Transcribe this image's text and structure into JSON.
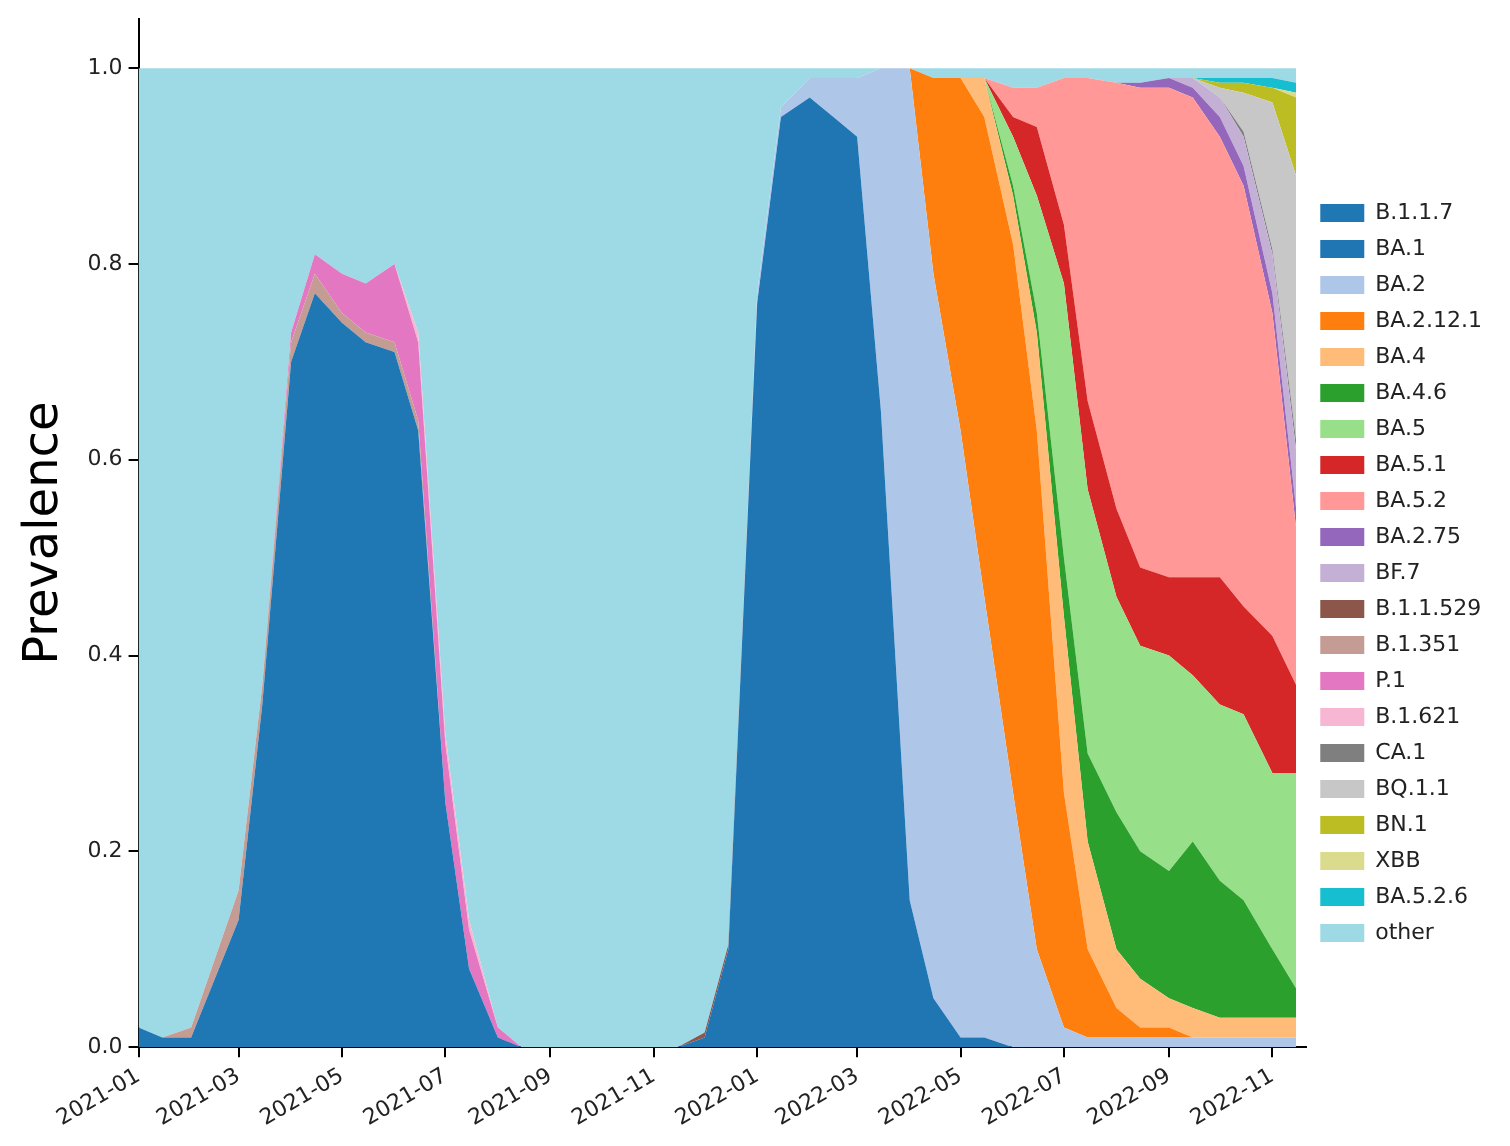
{
  "chart_data": {
    "type": "area",
    "stacked": true,
    "ylabel": "Prevalence",
    "x": [
      "2021-01-01",
      "2021-01-15",
      "2021-02-01",
      "2021-02-15",
      "2021-03-01",
      "2021-03-15",
      "2021-04-01",
      "2021-04-15",
      "2021-05-01",
      "2021-05-15",
      "2021-06-01",
      "2021-06-15",
      "2021-07-01",
      "2021-07-15",
      "2021-08-01",
      "2021-08-15",
      "2021-09-01",
      "2021-09-15",
      "2021-10-01",
      "2021-10-15",
      "2021-11-01",
      "2021-11-15",
      "2021-12-01",
      "2021-12-15",
      "2022-01-01",
      "2022-01-15",
      "2022-02-01",
      "2022-02-15",
      "2022-03-01",
      "2022-03-15",
      "2022-04-01",
      "2022-04-15",
      "2022-05-01",
      "2022-05-15",
      "2022-06-01",
      "2022-06-15",
      "2022-07-01",
      "2022-07-15",
      "2022-08-01",
      "2022-08-15",
      "2022-09-01",
      "2022-09-15",
      "2022-10-01",
      "2022-10-15",
      "2022-11-01",
      "2022-11-15"
    ],
    "xlim": [
      "2021-01-01",
      "2022-11-21"
    ],
    "xticks": [
      "2021-01",
      "2021-03",
      "2021-05",
      "2021-07",
      "2021-09",
      "2021-11",
      "2022-01",
      "2022-03",
      "2022-05",
      "2022-07",
      "2022-09",
      "2022-11"
    ],
    "ylim": [
      0,
      1.05
    ],
    "yticks": [
      {
        "value": 0,
        "label": "0.0"
      },
      0.2,
      0.4,
      0.6,
      0.8,
      {
        "value": 1,
        "label": "1.0"
      }
    ],
    "grid": false,
    "legend": "right",
    "series": [
      {
        "name": "B.1.1.7",
        "color": "#1f77b4",
        "values": [
          0.02,
          0.01,
          0.01,
          0.07,
          0.13,
          0.35,
          0.7,
          0.77,
          0.74,
          0.72,
          0.71,
          0.63,
          0.25,
          0.08,
          0.01,
          0,
          null,
          null,
          null,
          null,
          null,
          null,
          null,
          null,
          null,
          null,
          null,
          null,
          null,
          null,
          null,
          null,
          null,
          null,
          null,
          null,
          null,
          null,
          null,
          null,
          null,
          null,
          null,
          null,
          null,
          null
        ]
      },
      {
        "name": "BA.1",
        "color": "#1f76b3",
        "values": [
          null,
          null,
          null,
          null,
          null,
          null,
          null,
          null,
          null,
          null,
          null,
          null,
          null,
          null,
          null,
          null,
          null,
          null,
          null,
          null,
          null,
          0,
          0.01,
          0.1,
          0.76,
          0.95,
          0.97,
          0.95,
          0.93,
          0.65,
          0.15,
          0.05,
          0.01,
          0.01,
          0,
          null,
          null,
          null,
          null,
          null,
          null,
          null,
          null,
          null,
          null,
          null
        ]
      },
      {
        "name": "BA.2",
        "color": "#aec7e8",
        "values": [
          null,
          null,
          null,
          null,
          null,
          null,
          null,
          null,
          null,
          null,
          null,
          null,
          null,
          null,
          null,
          null,
          null,
          null,
          null,
          null,
          null,
          null,
          null,
          0,
          0.01,
          0.01,
          0.02,
          0.04,
          0.06,
          0.35,
          0.85,
          0.74,
          0.62,
          0.45,
          0.26,
          0.1,
          0.02,
          0.01,
          0.01,
          0.01,
          0.01,
          0.01,
          0.01,
          0.01,
          0.01,
          0.01
        ]
      },
      {
        "name": "BA.2.12.1",
        "color": "#ff7f0e",
        "values": [
          null,
          null,
          null,
          null,
          null,
          null,
          null,
          null,
          null,
          null,
          null,
          null,
          null,
          null,
          null,
          null,
          null,
          null,
          null,
          null,
          null,
          null,
          null,
          null,
          null,
          null,
          null,
          null,
          null,
          null,
          0,
          0.2,
          0.36,
          0.49,
          0.56,
          0.53,
          0.24,
          0.09,
          0.03,
          0.01,
          0.01,
          0,
          null,
          null,
          null,
          null
        ]
      },
      {
        "name": "BA.4",
        "color": "#ffbb78",
        "values": [
          null,
          null,
          null,
          null,
          null,
          null,
          null,
          null,
          null,
          null,
          null,
          null,
          null,
          null,
          null,
          null,
          null,
          null,
          null,
          null,
          null,
          null,
          null,
          null,
          null,
          null,
          null,
          null,
          null,
          null,
          null,
          null,
          0,
          0.04,
          0.05,
          0.1,
          0.18,
          0.11,
          0.06,
          0.05,
          0.03,
          0.03,
          0.02,
          0.02,
          0.02,
          0.02
        ]
      },
      {
        "name": "BA.4.6",
        "color": "#2ca02c",
        "values": [
          null,
          null,
          null,
          null,
          null,
          null,
          null,
          null,
          null,
          null,
          null,
          null,
          null,
          null,
          null,
          null,
          null,
          null,
          null,
          null,
          null,
          null,
          null,
          null,
          null,
          null,
          null,
          null,
          null,
          null,
          null,
          null,
          null,
          0,
          0.01,
          0.02,
          0.06,
          0.09,
          0.14,
          0.13,
          0.13,
          0.17,
          0.14,
          0.12,
          0.07,
          0.03
        ]
      },
      {
        "name": "BA.5",
        "color": "#98df8a",
        "values": [
          null,
          null,
          null,
          null,
          null,
          null,
          null,
          null,
          null,
          null,
          null,
          null,
          null,
          null,
          null,
          null,
          null,
          null,
          null,
          null,
          null,
          null,
          null,
          null,
          null,
          null,
          null,
          null,
          null,
          null,
          null,
          null,
          null,
          0,
          0.05,
          0.12,
          0.28,
          0.27,
          0.22,
          0.21,
          0.22,
          0.17,
          0.18,
          0.19,
          0.18,
          0.22
        ]
      },
      {
        "name": "BA.5.1",
        "color": "#d62728",
        "values": [
          null,
          null,
          null,
          null,
          null,
          null,
          null,
          null,
          null,
          null,
          null,
          null,
          null,
          null,
          null,
          null,
          null,
          null,
          null,
          null,
          null,
          null,
          null,
          null,
          null,
          null,
          null,
          null,
          null,
          null,
          null,
          null,
          null,
          0,
          0.02,
          0.07,
          0.06,
          0.09,
          0.09,
          0.08,
          0.08,
          0.1,
          0.13,
          0.11,
          0.14,
          0.09
        ]
      },
      {
        "name": "BA.5.2",
        "color": "#ff9896",
        "values": [
          null,
          null,
          null,
          null,
          null,
          null,
          null,
          null,
          null,
          null,
          null,
          null,
          null,
          null,
          null,
          null,
          null,
          null,
          null,
          null,
          null,
          null,
          null,
          null,
          null,
          null,
          null,
          null,
          null,
          null,
          null,
          null,
          null,
          0,
          0.03,
          0.04,
          0.15,
          0.33,
          0.435,
          0.49,
          0.5,
          0.49,
          0.45,
          0.43,
          0.33,
          0.16
        ]
      },
      {
        "name": "BA.2.75",
        "color": "#9467bd",
        "values": [
          null,
          null,
          null,
          null,
          null,
          null,
          null,
          null,
          null,
          null,
          null,
          null,
          null,
          null,
          null,
          null,
          null,
          null,
          null,
          null,
          null,
          null,
          null,
          null,
          null,
          null,
          null,
          null,
          null,
          null,
          null,
          null,
          null,
          null,
          null,
          null,
          null,
          null,
          0,
          0.005,
          0.01,
          0.01,
          0.02,
          0.02,
          0.02,
          0.02
        ]
      },
      {
        "name": "BF.7",
        "color": "#c5b0d5",
        "values": [
          null,
          null,
          null,
          null,
          null,
          null,
          null,
          null,
          null,
          null,
          null,
          null,
          null,
          null,
          null,
          null,
          null,
          null,
          null,
          null,
          null,
          null,
          null,
          null,
          null,
          null,
          null,
          null,
          null,
          null,
          null,
          null,
          null,
          null,
          null,
          null,
          null,
          null,
          null,
          null,
          0,
          0.01,
          0.02,
          0.03,
          0.04,
          0.06
        ]
      },
      {
        "name": "B.1.1.529",
        "color": "#8c564b",
        "values": [
          null,
          null,
          null,
          null,
          null,
          null,
          null,
          null,
          null,
          null,
          null,
          null,
          null,
          null,
          null,
          null,
          null,
          null,
          null,
          null,
          null,
          0,
          0.005,
          0.005,
          0,
          null,
          null,
          null,
          null,
          null,
          null,
          null,
          null,
          null,
          null,
          null,
          null,
          null,
          null,
          null,
          null,
          null,
          null,
          null,
          null,
          null
        ]
      },
      {
        "name": "B.1.351",
        "color": "#c49c94",
        "values": [
          null,
          0,
          0.01,
          0.02,
          0.03,
          0.02,
          0.02,
          0.02,
          0.01,
          0.01,
          0.01,
          0.01,
          0,
          null,
          null,
          null,
          null,
          null,
          null,
          null,
          null,
          null,
          null,
          null,
          null,
          null,
          null,
          null,
          null,
          null,
          null,
          null,
          null,
          null,
          null,
          null,
          null,
          null,
          null,
          null,
          null,
          null,
          null,
          null,
          null,
          null
        ]
      },
      {
        "name": "P.1",
        "color": "#e377c2",
        "values": [
          null,
          null,
          null,
          null,
          null,
          0,
          0.01,
          0.02,
          0.04,
          0.05,
          0.08,
          0.08,
          0.06,
          0.04,
          0.01,
          0,
          null,
          null,
          null,
          null,
          null,
          null,
          null,
          null,
          null,
          null,
          null,
          null,
          null,
          null,
          null,
          null,
          null,
          null,
          null,
          null,
          null,
          null,
          null,
          null,
          null,
          null,
          null,
          null,
          null,
          null
        ]
      },
      {
        "name": "B.1.621",
        "color": "#f7b6d2",
        "values": [
          null,
          null,
          null,
          null,
          null,
          null,
          null,
          null,
          null,
          null,
          0,
          0.01,
          0.01,
          0.01,
          0,
          null,
          null,
          null,
          null,
          null,
          null,
          null,
          null,
          null,
          null,
          null,
          null,
          null,
          null,
          null,
          null,
          null,
          null,
          null,
          null,
          null,
          null,
          null,
          null,
          null,
          null,
          null,
          null,
          null,
          null,
          null
        ]
      },
      {
        "name": "CA.1",
        "color": "#7f7f7f",
        "values": [
          null,
          null,
          null,
          null,
          null,
          null,
          null,
          null,
          null,
          null,
          null,
          null,
          null,
          null,
          null,
          null,
          null,
          null,
          null,
          null,
          null,
          null,
          null,
          null,
          null,
          null,
          null,
          null,
          null,
          null,
          null,
          null,
          null,
          null,
          null,
          null,
          null,
          null,
          null,
          null,
          null,
          null,
          0,
          0.005,
          0.005,
          0.01
        ]
      },
      {
        "name": "BQ.1.1",
        "color": "#c7c7c7",
        "values": [
          null,
          null,
          null,
          null,
          null,
          null,
          null,
          null,
          null,
          null,
          null,
          null,
          null,
          null,
          null,
          null,
          null,
          null,
          null,
          null,
          null,
          null,
          null,
          null,
          null,
          null,
          null,
          null,
          null,
          null,
          null,
          null,
          null,
          null,
          null,
          null,
          null,
          null,
          null,
          null,
          null,
          0,
          0.01,
          0.04,
          0.15,
          0.27
        ]
      },
      {
        "name": "BN.1",
        "color": "#bcbd22",
        "values": [
          null,
          null,
          null,
          null,
          null,
          null,
          null,
          null,
          null,
          null,
          null,
          null,
          null,
          null,
          null,
          null,
          null,
          null,
          null,
          null,
          null,
          null,
          null,
          null,
          null,
          null,
          null,
          null,
          null,
          null,
          null,
          null,
          null,
          null,
          null,
          null,
          null,
          null,
          null,
          null,
          null,
          0,
          0.005,
          0.01,
          0.015,
          0.08
        ]
      },
      {
        "name": "XBB",
        "color": "#dbdb8d",
        "values": [
          null,
          null,
          null,
          null,
          null,
          null,
          null,
          null,
          null,
          null,
          null,
          null,
          null,
          null,
          null,
          null,
          null,
          null,
          null,
          null,
          null,
          null,
          null,
          null,
          null,
          null,
          null,
          null,
          null,
          null,
          null,
          null,
          null,
          null,
          null,
          null,
          null,
          null,
          null,
          null,
          null,
          null,
          null,
          null,
          0,
          0.005
        ]
      },
      {
        "name": "BA.5.2.6",
        "color": "#17becf",
        "values": [
          null,
          null,
          null,
          null,
          null,
          null,
          null,
          null,
          null,
          null,
          null,
          null,
          null,
          null,
          null,
          null,
          null,
          null,
          null,
          null,
          null,
          null,
          null,
          null,
          null,
          null,
          null,
          null,
          null,
          null,
          null,
          null,
          null,
          null,
          null,
          null,
          null,
          null,
          null,
          null,
          null,
          0,
          0.005,
          0.005,
          0.01,
          0.01
        ]
      },
      {
        "name": "other",
        "color": "#9edae5",
        "values": [
          0.98,
          0.99,
          0.98,
          0.91,
          0.84,
          0.63,
          0.27,
          0.19,
          0.21,
          0.22,
          0.2,
          0.27,
          0.68,
          0.87,
          0.98,
          1,
          1,
          1,
          1,
          1,
          1,
          1,
          0.985,
          0.895,
          0.23,
          0.04,
          0.01,
          0.01,
          0.01,
          0,
          0,
          0.01,
          0.01,
          0.01,
          0.02,
          0.02,
          0.01,
          0.01,
          0.015,
          0.015,
          0.01,
          0.01,
          0.01,
          0.01,
          0.01,
          0.015
        ]
      }
    ]
  }
}
